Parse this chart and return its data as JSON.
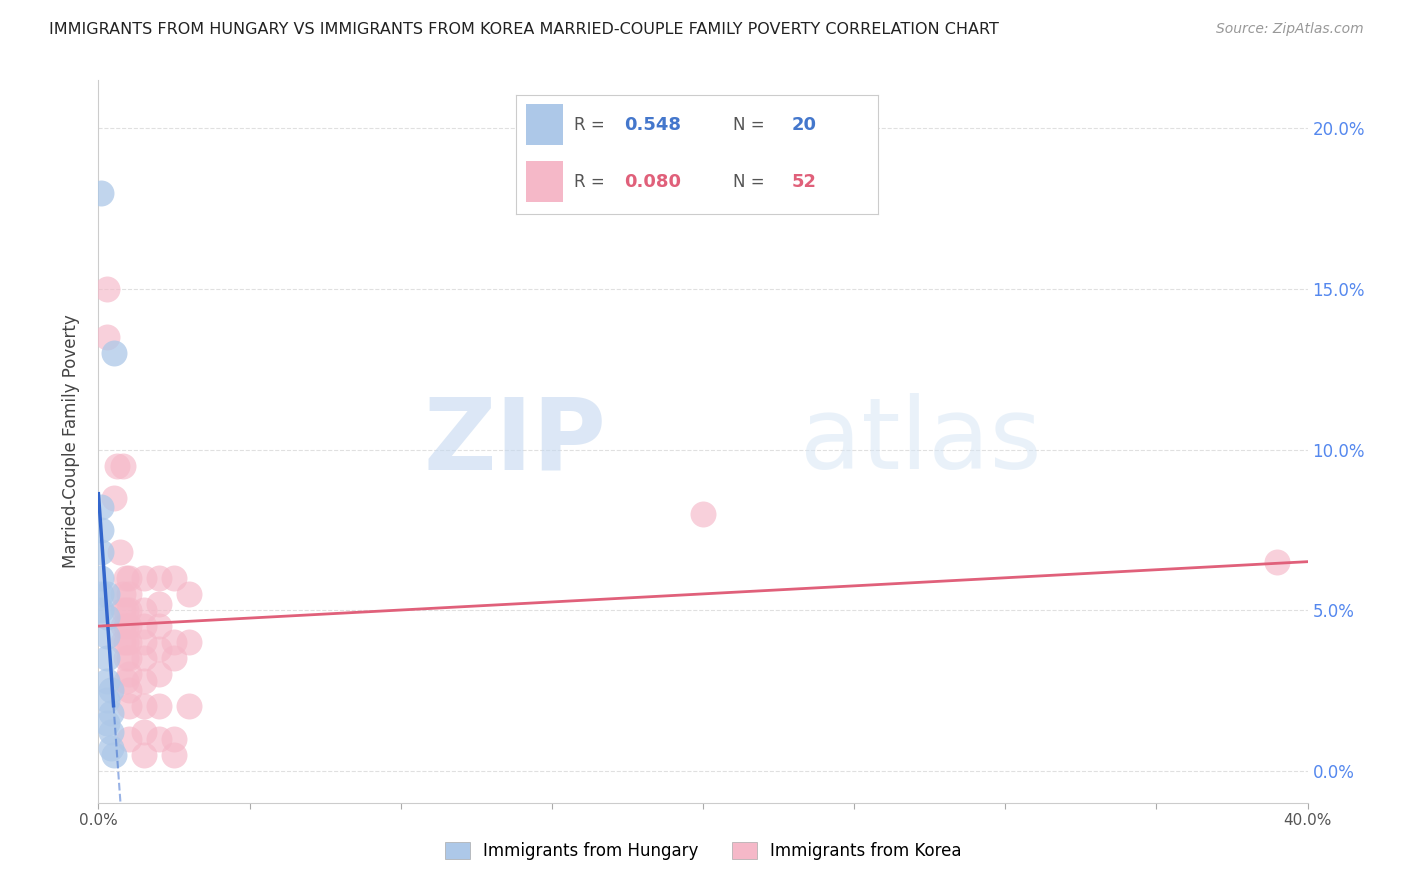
{
  "title": "IMMIGRANTS FROM HUNGARY VS IMMIGRANTS FROM KOREA MARRIED-COUPLE FAMILY POVERTY CORRELATION CHART",
  "source": "Source: ZipAtlas.com",
  "ylabel": "Married-Couple Family Poverty",
  "xlim": [
    0.0,
    0.4
  ],
  "ylim": [
    -0.01,
    0.215
  ],
  "hungary_R": 0.548,
  "hungary_N": 20,
  "korea_R": 0.08,
  "korea_N": 52,
  "hungary_color": "#adc8e8",
  "hungary_line_color": "#3366cc",
  "korea_color": "#f5b8c8",
  "korea_line_color": "#e0607a",
  "watermark_zip": "ZIP",
  "watermark_atlas": "atlas",
  "background_color": "#ffffff",
  "grid_color": "#dddddd",
  "hungary_points": [
    [
      0.001,
      0.18
    ],
    [
      0.005,
      0.13
    ],
    [
      0.001,
      0.082
    ],
    [
      0.001,
      0.075
    ],
    [
      0.001,
      0.068
    ],
    [
      0.001,
      0.06
    ],
    [
      0.001,
      0.055
    ],
    [
      0.001,
      0.05
    ],
    [
      0.003,
      0.055
    ],
    [
      0.003,
      0.048
    ],
    [
      0.003,
      0.042
    ],
    [
      0.003,
      0.035
    ],
    [
      0.003,
      0.028
    ],
    [
      0.003,
      0.022
    ],
    [
      0.003,
      0.015
    ],
    [
      0.004,
      0.025
    ],
    [
      0.004,
      0.018
    ],
    [
      0.004,
      0.012
    ],
    [
      0.004,
      0.007
    ],
    [
      0.005,
      0.005
    ]
  ],
  "korea_points": [
    [
      0.003,
      0.15
    ],
    [
      0.003,
      0.135
    ],
    [
      0.006,
      0.095
    ],
    [
      0.005,
      0.085
    ],
    [
      0.007,
      0.068
    ],
    [
      0.008,
      0.095
    ],
    [
      0.008,
      0.055
    ],
    [
      0.008,
      0.05
    ],
    [
      0.008,
      0.045
    ],
    [
      0.008,
      0.04
    ],
    [
      0.009,
      0.06
    ],
    [
      0.009,
      0.05
    ],
    [
      0.009,
      0.045
    ],
    [
      0.009,
      0.04
    ],
    [
      0.009,
      0.035
    ],
    [
      0.009,
      0.028
    ],
    [
      0.01,
      0.06
    ],
    [
      0.01,
      0.055
    ],
    [
      0.01,
      0.05
    ],
    [
      0.01,
      0.045
    ],
    [
      0.01,
      0.04
    ],
    [
      0.01,
      0.035
    ],
    [
      0.01,
      0.03
    ],
    [
      0.01,
      0.025
    ],
    [
      0.01,
      0.02
    ],
    [
      0.01,
      0.01
    ],
    [
      0.015,
      0.06
    ],
    [
      0.015,
      0.05
    ],
    [
      0.015,
      0.045
    ],
    [
      0.015,
      0.04
    ],
    [
      0.015,
      0.035
    ],
    [
      0.015,
      0.028
    ],
    [
      0.015,
      0.02
    ],
    [
      0.015,
      0.012
    ],
    [
      0.015,
      0.005
    ],
    [
      0.02,
      0.06
    ],
    [
      0.02,
      0.052
    ],
    [
      0.02,
      0.045
    ],
    [
      0.02,
      0.038
    ],
    [
      0.02,
      0.03
    ],
    [
      0.02,
      0.02
    ],
    [
      0.02,
      0.01
    ],
    [
      0.025,
      0.06
    ],
    [
      0.025,
      0.04
    ],
    [
      0.025,
      0.035
    ],
    [
      0.025,
      0.01
    ],
    [
      0.025,
      0.005
    ],
    [
      0.03,
      0.055
    ],
    [
      0.03,
      0.04
    ],
    [
      0.03,
      0.02
    ],
    [
      0.2,
      0.08
    ],
    [
      0.39,
      0.065
    ]
  ],
  "legend_hungary_color": "#adc8e8",
  "legend_korea_color": "#f5b8c8",
  "legend_hungary_text_color": "#4477cc",
  "legend_korea_text_color": "#e0607a"
}
